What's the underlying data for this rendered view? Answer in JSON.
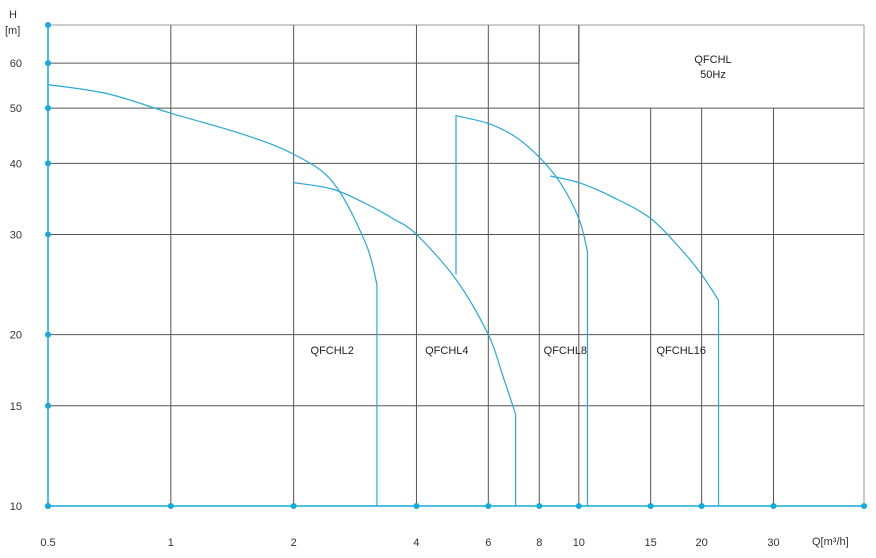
{
  "chart_data": {
    "type": "line",
    "title_lines": [
      "QFCHL",
      "50Hz"
    ],
    "ylabel": "H",
    "yunit": "[m]",
    "xlabel": "Q[m³/h]",
    "x_scale": "log",
    "y_scale": "log",
    "xlim": [
      0.5,
      50
    ],
    "ylim": [
      10,
      70
    ],
    "x_ticks": [
      {
        "v": 0.5,
        "label": "0.5"
      },
      {
        "v": 1,
        "label": "1"
      },
      {
        "v": 2,
        "label": "2"
      },
      {
        "v": 4,
        "label": "4"
      },
      {
        "v": 6,
        "label": "6"
      },
      {
        "v": 8,
        "label": "8"
      },
      {
        "v": 10,
        "label": "10"
      },
      {
        "v": 15,
        "label": "15"
      },
      {
        "v": 20,
        "label": "20"
      },
      {
        "v": 30,
        "label": "30"
      }
    ],
    "y_ticks": [
      {
        "v": 10,
        "label": "10"
      },
      {
        "v": 15,
        "label": "15"
      },
      {
        "v": 20,
        "label": "20"
      },
      {
        "v": 30,
        "label": "30"
      },
      {
        "v": 40,
        "label": "40"
      },
      {
        "v": 50,
        "label": "50"
      },
      {
        "v": 60,
        "label": "60"
      }
    ],
    "grid": true,
    "colors": {
      "curve": "#29a8d8",
      "axis": "#15a9dc",
      "grid": "#555555",
      "frame": "#999999"
    },
    "series": [
      {
        "name": "QFCHL2",
        "label_at": [
          2.2,
          18.5
        ],
        "points": [
          [
            0.5,
            55
          ],
          [
            0.7,
            53
          ],
          [
            1.0,
            49
          ],
          [
            1.5,
            45
          ],
          [
            2.0,
            41.5
          ],
          [
            2.5,
            37
          ],
          [
            3.0,
            29
          ],
          [
            3.2,
            24.5
          ],
          [
            3.2,
            10
          ]
        ]
      },
      {
        "name": "QFCHL4",
        "label_at": [
          4.2,
          18.5
        ],
        "points": [
          [
            2.0,
            37
          ],
          [
            2.5,
            36
          ],
          [
            3.0,
            34
          ],
          [
            3.5,
            32
          ],
          [
            4.0,
            30
          ],
          [
            5.0,
            25
          ],
          [
            6.0,
            20
          ],
          [
            6.5,
            17
          ],
          [
            7.0,
            14.5
          ],
          [
            7.0,
            10
          ]
        ]
      },
      {
        "name": "QFCHL8",
        "label_at": [
          8.2,
          18.5
        ],
        "points": [
          [
            5.0,
            25.5
          ],
          [
            5.0,
            48.5
          ],
          [
            6.0,
            47
          ],
          [
            7.0,
            44.5
          ],
          [
            8.0,
            41
          ],
          [
            9.0,
            37
          ],
          [
            10.0,
            32
          ],
          [
            10.5,
            28
          ],
          [
            10.5,
            10
          ]
        ]
      },
      {
        "name": "QFCHL16",
        "label_at": [
          15.5,
          18.5
        ],
        "points": [
          [
            8.5,
            38
          ],
          [
            10.0,
            37
          ],
          [
            12.0,
            35
          ],
          [
            15.0,
            32
          ],
          [
            18.0,
            28
          ],
          [
            20.0,
            25.5
          ],
          [
            22.0,
            23
          ],
          [
            22.0,
            10
          ]
        ]
      }
    ]
  }
}
